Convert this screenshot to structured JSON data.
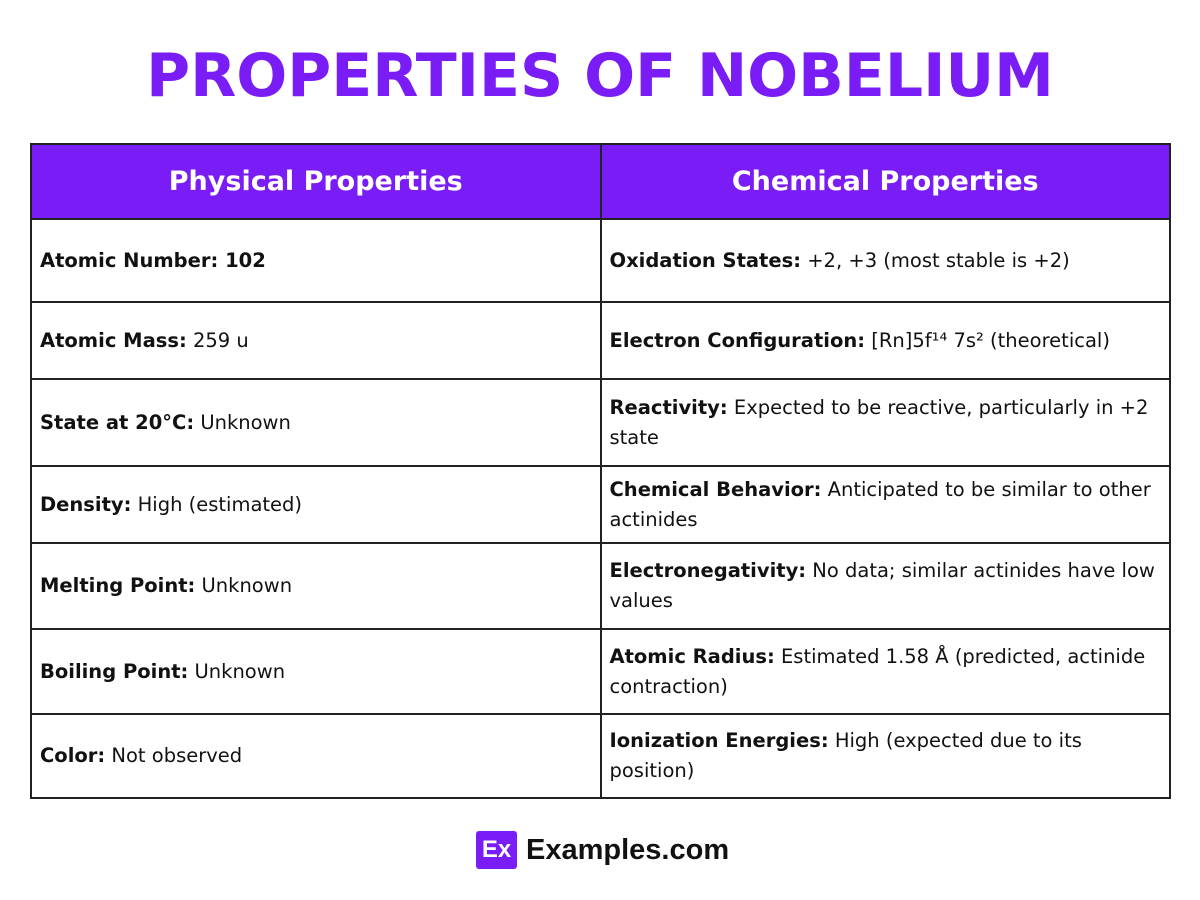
{
  "title": "PROPERTIES OF NOBELIUM",
  "table": {
    "headers": [
      "Physical Properties",
      "Chemical Properties"
    ],
    "rows": [
      {
        "physical": {
          "label": "Atomic Number: 102",
          "value": ""
        },
        "chemical": {
          "label": "Oxidation States:",
          "value": " +2, +3 (most stable is +2)"
        }
      },
      {
        "physical": {
          "label": "Atomic Mass:",
          "value": " 259 u"
        },
        "chemical": {
          "label": "Electron Configuration:",
          "value": " [Rn]5f¹⁴ 7s² (theoretical)"
        }
      },
      {
        "physical": {
          "label": "State at 20°C:",
          "value": " Unknown"
        },
        "chemical": {
          "label": "Reactivity:",
          "value": " Expected to be reactive, particularly in +2 state"
        }
      },
      {
        "physical": {
          "label": "Density:",
          "value": " High (estimated)"
        },
        "chemical": {
          "label": "Chemical Behavior:",
          "value": " Anticipated to be similar to other actinides"
        }
      },
      {
        "physical": {
          "label": "Melting Point:",
          "value": " Unknown"
        },
        "chemical": {
          "label": "Electronegativity:",
          "value": " No data; similar actinides have low values"
        }
      },
      {
        "physical": {
          "label": "Boiling Point:",
          "value": " Unknown"
        },
        "chemical": {
          "label": "Atomic Radius:",
          "value": " Estimated 1.58 Å (predicted, actinide contraction)"
        }
      },
      {
        "physical": {
          "label": "Color:",
          "value": " Not observed"
        },
        "chemical": {
          "label": "Ionization Energies:",
          "value": " High (expected due to its position)"
        }
      }
    ]
  },
  "footer": {
    "logo_mark": "Ex",
    "logo_text": "Examples.com"
  },
  "colors": {
    "accent": "#7a1cf5",
    "border": "#222222"
  }
}
